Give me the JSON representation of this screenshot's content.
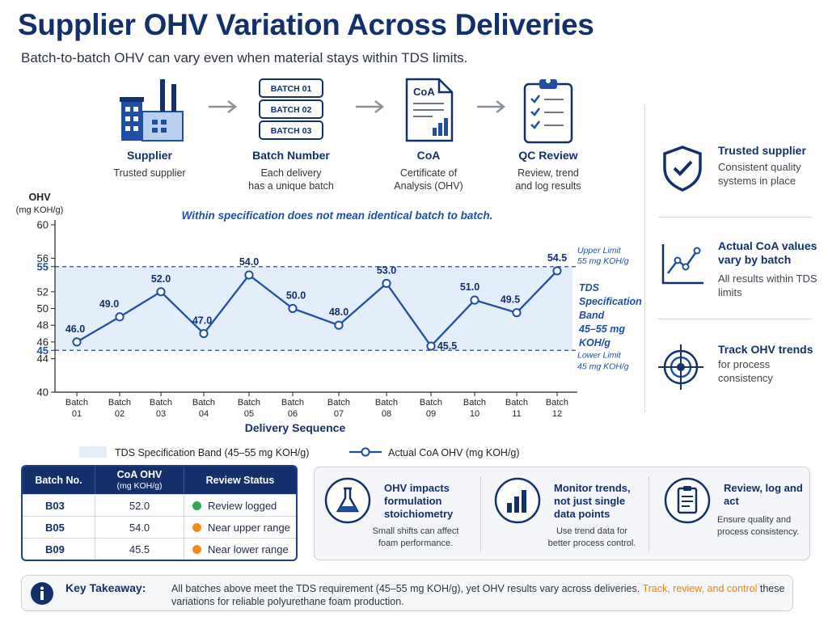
{
  "title": "Supplier OHV Variation Across Deliveries",
  "subtitle": "Batch-to-batch OHV can vary even when material stays within TDS limits.",
  "flow": {
    "steps": [
      {
        "name": "Supplier",
        "desc": "Trusted supplier",
        "icon": "factory-icon"
      },
      {
        "name": "Batch Number",
        "desc": "Each delivery\nhas a unique batch",
        "icon": "batch-stack-icon",
        "labels": [
          "BATCH 01",
          "BATCH 02",
          "BATCH 03"
        ]
      },
      {
        "name": "CoA",
        "desc": "Certificate of\nAnalysis (OHV)",
        "icon": "document-icon",
        "doc_label": "CoA"
      },
      {
        "name": "QC Review",
        "desc": "Review, trend\nand log results",
        "icon": "clipboard-check-icon"
      }
    ]
  },
  "info_panel": [
    {
      "heading": "Trusted supplier",
      "text": "Consistent quality systems in place",
      "icon": "shield-check-icon"
    },
    {
      "heading": "Actual CoA values vary by batch",
      "text": "All results within TDS limits",
      "icon": "line-trend-icon"
    },
    {
      "heading": "Track OHV trends",
      "text": "for process consistency",
      "icon": "target-icon"
    }
  ],
  "chart_data": {
    "type": "line",
    "title": "",
    "annotation": "Within specification does not mean identical batch to batch.",
    "ylabel": "OHV",
    "ylabel_unit": "(mg KOH/g)",
    "xlabel": "Delivery Sequence",
    "categories": [
      "Batch 01",
      "Batch 02",
      "Batch 03",
      "Batch 04",
      "Batch 05",
      "Batch 06",
      "Batch 07",
      "Batch 08",
      "Batch 09",
      "Batch 10",
      "Batch 11",
      "Batch 12"
    ],
    "y_ticks": [
      40,
      44,
      45,
      46,
      48,
      50,
      52,
      55,
      56,
      60
    ],
    "y_tick_labels": [
      "40",
      "44",
      "45",
      "46",
      "48",
      "50",
      "52",
      "55",
      "56",
      "60"
    ],
    "ylim": [
      40,
      60
    ],
    "series": [
      {
        "name": "Actual CoA OHV (mg KOH/g)",
        "values": [
          46.0,
          49.0,
          52.0,
          47.0,
          54.0,
          50.0,
          48.0,
          53.0,
          45.5,
          51.0,
          49.5,
          54.5
        ],
        "color": "#1f4fa3"
      }
    ],
    "data_labels": [
      "46.0",
      "49.0",
      "52.0",
      "47.0",
      "54.0",
      "50.0",
      "48.0",
      "53.0",
      "45.5",
      "51.0",
      "49.5",
      "54.5"
    ],
    "band": {
      "low": 45,
      "high": 55,
      "label_lines": [
        "TDS",
        "Specification",
        "Band",
        "45–55 mg",
        "KOH/g"
      ],
      "color": "#e4eefb"
    },
    "upper_limit": {
      "value": 55,
      "label_lines": [
        "Upper Limit",
        "55 mg KOH/g"
      ]
    },
    "lower_limit": {
      "value": 45,
      "label_lines": [
        "Lower Limit",
        "45 mg KOH/g"
      ]
    },
    "legend": [
      {
        "label": "TDS Specification Band (45–55 mg KOH/g)",
        "kind": "band"
      },
      {
        "label": "Actual CoA OHV (mg KOH/g)",
        "kind": "line"
      }
    ],
    "legend_placement": "bottom",
    "grid": false
  },
  "table": {
    "headers": {
      "batch": "Batch No.",
      "ohv": "CoA OHV",
      "ohv_unit": "(mg KOH/g)",
      "status": "Review Status"
    },
    "rows": [
      {
        "batch": "B03",
        "ohv": "52.0",
        "status": "Review logged",
        "color": "#2fa84f"
      },
      {
        "batch": "B05",
        "ohv": "54.0",
        "status": "Near upper range",
        "color": "#f08a1c"
      },
      {
        "batch": "B09",
        "ohv": "45.5",
        "status": "Near lower range",
        "color": "#f08a1c"
      }
    ]
  },
  "cards": [
    {
      "heading": "OHV impacts formulation stoichiometry",
      "text": "Small shifts can affect foam performance.",
      "icon": "flask-icon"
    },
    {
      "heading": "Monitor trends, not just single data points",
      "text": "Use trend data for better process control.",
      "icon": "bar-chart-icon"
    },
    {
      "heading": "Review, log and act",
      "text": "Ensure quality and process consistency.",
      "icon": "clipboard-list-icon"
    }
  ],
  "takeaway": {
    "label": "Key Takeaway:",
    "text": "All batches above meet the TDS requirement (45–55 mg KOH/g), yet OHV results vary across deliveries. ",
    "highlight": "Track, review, and control",
    "text_end": " these variations for reliable polyurethane foam production.",
    "icon": "info-icon"
  },
  "colors": {
    "navy": "#13306b",
    "blue": "#1f4fa3",
    "orange": "#e9830e",
    "band": "#e4eefb"
  }
}
